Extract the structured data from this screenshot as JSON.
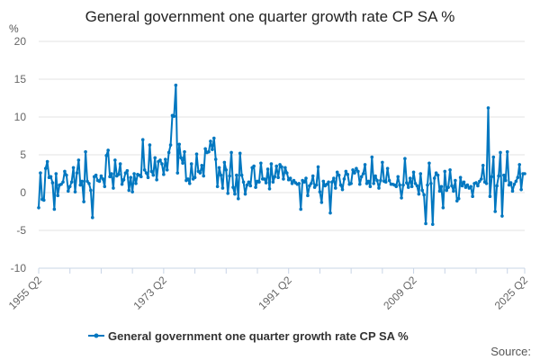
{
  "chart_data": {
    "type": "line",
    "title": "General government one quarter growth rate CP SA %",
    "ylabel": "%",
    "xlabel": "",
    "x_start": "1955 Q2",
    "x_end": "2025 Q2",
    "x_frequency": "quarterly",
    "x_tick_labels": [
      "1955 Q2",
      "1973 Q2",
      "1991 Q2",
      "2009 Q2",
      "2025 Q2"
    ],
    "ylim": [
      -10,
      20
    ],
    "y_ticks": [
      -10,
      -5,
      0,
      5,
      10,
      15,
      20
    ],
    "grid": true,
    "legend_position": "bottom",
    "color": "#0077c0",
    "source_label": "Source:",
    "series": [
      {
        "name": "General government one quarter growth rate CP SA %",
        "values": [
          -2,
          2.6,
          -0.9,
          -1,
          3.2,
          4.1,
          2,
          2.1,
          1.3,
          -2.2,
          2.5,
          -0.4,
          1,
          1.1,
          1.4,
          2.8,
          2.3,
          0.2,
          0.8,
          1.4,
          3.3,
          0.1,
          2.6,
          4.3,
          1,
          1.5,
          -1.2,
          5.4,
          1.5,
          1.2,
          0.3,
          -3.3,
          2.1,
          2.3,
          1.6,
          1.5,
          2.2,
          1.8,
          0.8,
          4.9,
          5.6,
          2.1,
          2.5,
          0.6,
          4.3,
          2.2,
          2.4,
          3.8,
          1.1,
          1.7,
          2.6,
          2.9,
          0.3,
          2,
          0.1,
          2.5,
          1.2,
          2.4,
          2.3,
          2.1,
          7,
          3,
          2.6,
          2,
          6.3,
          2.8,
          2.3,
          4.6,
          1.7,
          4.1,
          4.3,
          3.8,
          2.4,
          4.4,
          3,
          5.3,
          6.3,
          10.2,
          10.1,
          14.2,
          2.6,
          6.4,
          4.6,
          3.9,
          5.4,
          1.6,
          1.8,
          1.2,
          3.8,
          1.8,
          2,
          5.1,
          2.8,
          2.6,
          3.6,
          2.2,
          5.8,
          5.3,
          5.4,
          6.8,
          5.7,
          7.2,
          4.4,
          0.8,
          3.3,
          2.3,
          0.6,
          4,
          3,
          -0.1,
          2.2,
          5.3,
          0.7,
          -0.2,
          2.3,
          -0.8,
          5.2,
          2.3,
          1.4,
          -0.2,
          1,
          1.4,
          0.9,
          3.3,
          3.5,
          0.7,
          1.5,
          1.4,
          3.9,
          1.8,
          1.8,
          1.3,
          3.1,
          0.5,
          3.8,
          1.4,
          2.1,
          3.5,
          2,
          3.7,
          3.4,
          1.8,
          3.3,
          2.6,
          1.7,
          1.9,
          1.2,
          1.6,
          1.3,
          1.1,
          1.2,
          -2.2,
          1.6,
          1.4,
          1.9,
          -0.4,
          0.9,
          1.2,
          2.2,
          0.7,
          1.0,
          3.4,
          0.1,
          -1.3,
          1.5,
          0.9,
          1.1,
          1.4,
          -2.7,
          1.4,
          1.9,
          0.6,
          2.7,
          2.3,
          1.0,
          0.4,
          1.8,
          2.8,
          2.4,
          1.1,
          1.2,
          3.0,
          2.6,
          3.2,
          2.8,
          1.1,
          2.1,
          2.5,
          3.7,
          1.2,
          1.5,
          0.8,
          4.7,
          1.2,
          2.2,
          1.6,
          0.6,
          1.6,
          4.0,
          1.5,
          1.4,
          3.2,
          1.6,
          1.1,
          1.1,
          1.0,
          0.8,
          2.1,
          1.0,
          -0.7,
          1.0,
          4.5,
          1.3,
          0.7,
          1.9,
          0.8,
          2.7,
          1.2,
          0.9,
          -0.2,
          2.5,
          0.3,
          -0.3,
          -4.1,
          1.0,
          3.9,
          1.2,
          -4.2,
          1.9,
          2.6,
          2.3,
          0.2,
          0.8,
          -2.0,
          2.8,
          0.3,
          0.7,
          3.0,
          0.9,
          0.2,
          1.6,
          -1.1,
          -0.8,
          2.0,
          0.9,
          1.4,
          0.7,
          1.0,
          0.6,
          0.8,
          -0.5,
          1.2,
          1.3,
          0.9,
          1.5,
          1.8,
          3.6,
          1.4,
          1.2,
          11.2,
          -0.5,
          2.1,
          4.7,
          -2.5,
          0.9,
          2.2,
          5.3,
          -3.1,
          2.3,
          1.6,
          5.4,
          1.0,
          1.3,
          0.2,
          1.1,
          1.5,
          2.0,
          3.7,
          0.4,
          2.5,
          2.5
        ]
      }
    ]
  }
}
